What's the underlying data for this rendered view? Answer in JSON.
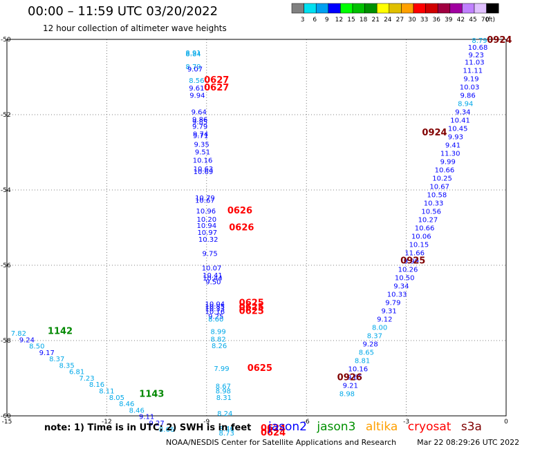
{
  "header": {
    "title": "00:00 – 11:59 UTC 03/20/2022",
    "subtitle": "12 hour collection of altimeter wave heights"
  },
  "legend": {
    "unit": "(ft)",
    "entries": [
      {
        "label": "3",
        "color": "#808080"
      },
      {
        "label": "6",
        "color": "#00e0f0"
      },
      {
        "label": "9",
        "color": "#00a0f0"
      },
      {
        "label": "12",
        "color": "#0000ff"
      },
      {
        "label": "15",
        "color": "#00ff00"
      },
      {
        "label": "18",
        "color": "#00c000"
      },
      {
        "label": "21",
        "color": "#009000"
      },
      {
        "label": "24",
        "color": "#ffff00"
      },
      {
        "label": "27",
        "color": "#e0c000"
      },
      {
        "label": "30",
        "color": "#ffa000"
      },
      {
        "label": "33",
        "color": "#ff0000"
      },
      {
        "label": "36",
        "color": "#d00000"
      },
      {
        "label": "39",
        "color": "#a00040"
      },
      {
        "label": "42",
        "color": "#a000a0"
      },
      {
        "label": "45",
        "color": "#c080ff"
      },
      {
        "label": "70",
        "color": "#e0c0ff"
      },
      {
        "label": "",
        "color": "#000000"
      }
    ]
  },
  "footer": {
    "note": "note: 1) Time is in UTC; 2) SWH is in feet",
    "credit": "NOAA/NESDIS Center for Satellite Applications and Research",
    "timestamp": "Mar 22 08:29:26 UTC 2022",
    "satellites": [
      {
        "name": "jason2",
        "color": "#0000ff"
      },
      {
        "name": "jason3",
        "color": "#009000"
      },
      {
        "name": "altika",
        "color": "#ffa000"
      },
      {
        "name": "cryosat",
        "color": "#ff0000"
      },
      {
        "name": "s3a",
        "color": "#800000"
      }
    ]
  },
  "chart_data": {
    "type": "scatter",
    "xlim": [
      -15,
      0
    ],
    "ylim": [
      -60,
      -50
    ],
    "x_ticks": [
      -15,
      -12,
      -9,
      -6,
      -3,
      0
    ],
    "y_ticks": [
      -50,
      -52,
      -54,
      -56,
      -58,
      -60
    ],
    "grid": true,
    "colors": {
      "cyan": "#00a8e8",
      "blue": "#0000ff",
      "red": "#ff0000",
      "green": "#008800",
      "maroon": "#800000"
    },
    "series": [
      {
        "name": "track 1 (wave heights)",
        "points": [
          {
            "x": -9.4,
            "y": -50.35,
            "label": "8.91",
            "c": "cyan"
          },
          {
            "x": -9.4,
            "y": -50.38,
            "label": "8.84",
            "c": "cyan"
          },
          {
            "x": -9.4,
            "y": -50.72,
            "label": "8.79",
            "c": "cyan"
          },
          {
            "x": -9.35,
            "y": -50.78,
            "label": "9.07",
            "c": "blue"
          },
          {
            "x": -9.3,
            "y": -51.08,
            "label": "8.56",
            "c": "cyan"
          },
          {
            "x": -9.3,
            "y": -51.28,
            "label": "9.61",
            "c": "blue"
          },
          {
            "x": -9.28,
            "y": -51.48,
            "label": "9.94",
            "c": "blue"
          },
          {
            "x": -9.23,
            "y": -51.92,
            "label": "9.64",
            "c": "blue"
          },
          {
            "x": -9.2,
            "y": -52.12,
            "label": "9.86",
            "c": "blue"
          },
          {
            "x": -9.2,
            "y": -52.18,
            "label": "9.85",
            "c": "blue"
          },
          {
            "x": -9.2,
            "y": -52.3,
            "label": "9.79",
            "c": "blue"
          },
          {
            "x": -9.18,
            "y": -52.5,
            "label": "9.74",
            "c": "blue"
          },
          {
            "x": -9.18,
            "y": -52.55,
            "label": "9.71",
            "c": "blue"
          },
          {
            "x": -9.15,
            "y": -52.78,
            "label": "9.35",
            "c": "blue"
          },
          {
            "x": -9.12,
            "y": -52.98,
            "label": "9.51",
            "c": "blue"
          },
          {
            "x": -9.12,
            "y": -53.2,
            "label": "10.16",
            "c": "blue"
          },
          {
            "x": -9.1,
            "y": -53.43,
            "label": "10.63",
            "c": "blue"
          },
          {
            "x": -9.1,
            "y": -53.5,
            "label": "10.69",
            "c": "blue"
          },
          {
            "x": -9.05,
            "y": -54.2,
            "label": "10.79",
            "c": "blue"
          },
          {
            "x": -9.05,
            "y": -54.27,
            "label": "10.67",
            "c": "blue"
          },
          {
            "x": -9.02,
            "y": -54.55,
            "label": "10.96",
            "c": "blue"
          },
          {
            "x": -9.0,
            "y": -54.77,
            "label": "10.20",
            "c": "blue"
          },
          {
            "x": -9.0,
            "y": -54.94,
            "label": "10.94",
            "c": "blue"
          },
          {
            "x": -8.98,
            "y": -55.12,
            "label": "10.97",
            "c": "blue"
          },
          {
            "x": -8.95,
            "y": -55.3,
            "label": "10.32",
            "c": "blue"
          },
          {
            "x": -8.9,
            "y": -55.68,
            "label": "9.75",
            "c": "blue"
          },
          {
            "x": -8.85,
            "y": -56.06,
            "label": "10.07",
            "c": "blue"
          },
          {
            "x": -8.82,
            "y": -56.26,
            "label": "10.41",
            "c": "blue"
          },
          {
            "x": -8.82,
            "y": -56.33,
            "label": "10.44",
            "c": "blue"
          },
          {
            "x": -8.8,
            "y": -56.43,
            "label": "9.50",
            "c": "blue"
          },
          {
            "x": -8.75,
            "y": -57.02,
            "label": "10.04",
            "c": "blue"
          },
          {
            "x": -8.75,
            "y": -57.08,
            "label": "10.85",
            "c": "blue"
          },
          {
            "x": -8.75,
            "y": -57.15,
            "label": "10.33",
            "c": "blue"
          },
          {
            "x": -8.75,
            "y": -57.22,
            "label": "10.16",
            "c": "blue"
          },
          {
            "x": -8.72,
            "y": -57.35,
            "label": "9.25",
            "c": "blue"
          },
          {
            "x": -8.72,
            "y": -57.42,
            "label": "8.60",
            "c": "cyan"
          },
          {
            "x": -8.65,
            "y": -57.75,
            "label": "8.99",
            "c": "cyan"
          },
          {
            "x": -8.65,
            "y": -57.95,
            "label": "8.82",
            "c": "cyan"
          },
          {
            "x": -8.62,
            "y": -58.13,
            "label": "8.26",
            "c": "cyan"
          },
          {
            "x": -8.55,
            "y": -58.73,
            "label": "7.99",
            "c": "cyan"
          },
          {
            "x": -8.5,
            "y": -59.2,
            "label": "8.67",
            "c": "cyan"
          },
          {
            "x": -8.5,
            "y": -59.33,
            "label": "8.98",
            "c": "cyan"
          },
          {
            "x": -8.48,
            "y": -59.5,
            "label": "8.31",
            "c": "cyan"
          },
          {
            "x": -8.45,
            "y": -59.93,
            "label": "8.24",
            "c": "cyan"
          },
          {
            "x": -8.4,
            "y": -60.33,
            "label": "8.46",
            "c": "cyan"
          },
          {
            "x": -8.4,
            "y": -60.45,
            "label": "8.73",
            "c": "cyan"
          }
        ]
      },
      {
        "name": "track 2 (wave heights)",
        "points": [
          {
            "x": -0.8,
            "y": -50.02,
            "label": "8.79",
            "c": "cyan"
          },
          {
            "x": -0.85,
            "y": -50.2,
            "label": "10.68",
            "c": "blue"
          },
          {
            "x": -0.9,
            "y": -50.4,
            "label": "9.23",
            "c": "blue"
          },
          {
            "x": -0.95,
            "y": -50.6,
            "label": "11.03",
            "c": "blue"
          },
          {
            "x": -1.0,
            "y": -50.82,
            "label": "11.11",
            "c": "blue"
          },
          {
            "x": -1.05,
            "y": -51.04,
            "label": "9.19",
            "c": "blue"
          },
          {
            "x": -1.1,
            "y": -51.26,
            "label": "10.03",
            "c": "blue"
          },
          {
            "x": -1.15,
            "y": -51.48,
            "label": "9.86",
            "c": "blue"
          },
          {
            "x": -1.22,
            "y": -51.7,
            "label": "8.94",
            "c": "cyan"
          },
          {
            "x": -1.3,
            "y": -51.92,
            "label": "9.34",
            "c": "blue"
          },
          {
            "x": -1.38,
            "y": -52.14,
            "label": "10.41",
            "c": "blue"
          },
          {
            "x": -1.45,
            "y": -52.36,
            "label": "10.45",
            "c": "blue"
          },
          {
            "x": -1.52,
            "y": -52.58,
            "label": "9.93",
            "c": "blue"
          },
          {
            "x": -1.6,
            "y": -52.8,
            "label": "9.41",
            "c": "blue"
          },
          {
            "x": -1.68,
            "y": -53.02,
            "label": "11.30",
            "c": "blue"
          },
          {
            "x": -1.75,
            "y": -53.24,
            "label": "9.99",
            "c": "blue"
          },
          {
            "x": -1.85,
            "y": -53.46,
            "label": "10.66",
            "c": "blue"
          },
          {
            "x": -1.92,
            "y": -53.68,
            "label": "10.25",
            "c": "blue"
          },
          {
            "x": -2.0,
            "y": -53.9,
            "label": "10.67",
            "c": "blue"
          },
          {
            "x": -2.08,
            "y": -54.12,
            "label": "10.58",
            "c": "blue"
          },
          {
            "x": -2.18,
            "y": -54.34,
            "label": "10.33",
            "c": "blue"
          },
          {
            "x": -2.25,
            "y": -54.56,
            "label": "10.56",
            "c": "blue"
          },
          {
            "x": -2.35,
            "y": -54.78,
            "label": "10.27",
            "c": "blue"
          },
          {
            "x": -2.45,
            "y": -55.0,
            "label": "10.66",
            "c": "blue"
          },
          {
            "x": -2.55,
            "y": -55.22,
            "label": "10.06",
            "c": "blue"
          },
          {
            "x": -2.62,
            "y": -55.44,
            "label": "10.15",
            "c": "blue"
          },
          {
            "x": -2.75,
            "y": -55.66,
            "label": "11.66",
            "c": "blue"
          },
          {
            "x": -2.85,
            "y": -55.88,
            "label": "9.99",
            "c": "blue"
          },
          {
            "x": -2.95,
            "y": -56.1,
            "label": "10.26",
            "c": "blue"
          },
          {
            "x": -3.05,
            "y": -56.32,
            "label": "10.50",
            "c": "blue"
          },
          {
            "x": -3.15,
            "y": -56.54,
            "label": "9.34",
            "c": "blue"
          },
          {
            "x": -3.28,
            "y": -56.76,
            "label": "10.33",
            "c": "blue"
          },
          {
            "x": -3.4,
            "y": -56.98,
            "label": "9.79",
            "c": "blue"
          },
          {
            "x": -3.52,
            "y": -57.2,
            "label": "9.31",
            "c": "blue"
          },
          {
            "x": -3.65,
            "y": -57.42,
            "label": "9.12",
            "c": "blue"
          },
          {
            "x": -3.8,
            "y": -57.64,
            "label": "8.00",
            "c": "cyan"
          },
          {
            "x": -3.95,
            "y": -57.86,
            "label": "8.37",
            "c": "cyan"
          },
          {
            "x": -4.08,
            "y": -58.08,
            "label": "9.28",
            "c": "blue"
          },
          {
            "x": -4.2,
            "y": -58.3,
            "label": "8.65",
            "c": "cyan"
          },
          {
            "x": -4.32,
            "y": -58.52,
            "label": "8.81",
            "c": "cyan"
          },
          {
            "x": -4.45,
            "y": -58.74,
            "label": "10.16",
            "c": "blue"
          },
          {
            "x": -4.55,
            "y": -58.96,
            "label": "9.65",
            "c": "blue"
          },
          {
            "x": -4.68,
            "y": -59.18,
            "label": "9.21",
            "c": "blue"
          },
          {
            "x": -4.78,
            "y": -59.4,
            "label": "8.98",
            "c": "cyan"
          }
        ]
      },
      {
        "name": "track 3 (wave heights)",
        "points": [
          {
            "x": -14.65,
            "y": -57.8,
            "label": "7.82",
            "c": "cyan"
          },
          {
            "x": -14.4,
            "y": -57.97,
            "label": "9.24",
            "c": "blue"
          },
          {
            "x": -14.1,
            "y": -58.14,
            "label": "8.50",
            "c": "cyan"
          },
          {
            "x": -13.8,
            "y": -58.31,
            "label": "9.17",
            "c": "blue"
          },
          {
            "x": -13.5,
            "y": -58.48,
            "label": "8.37",
            "c": "cyan"
          },
          {
            "x": -13.2,
            "y": -58.65,
            "label": "8.35",
            "c": "cyan"
          },
          {
            "x": -12.9,
            "y": -58.82,
            "label": "6.81",
            "c": "cyan"
          },
          {
            "x": -12.6,
            "y": -58.99,
            "label": "7.23",
            "c": "cyan"
          },
          {
            "x": -12.3,
            "y": -59.16,
            "label": "8.16",
            "c": "cyan"
          },
          {
            "x": -12.0,
            "y": -59.33,
            "label": "8.11",
            "c": "cyan"
          },
          {
            "x": -11.7,
            "y": -59.5,
            "label": "8.05",
            "c": "cyan"
          },
          {
            "x": -11.4,
            "y": -59.67,
            "label": "8.46",
            "c": "cyan"
          },
          {
            "x": -11.1,
            "y": -59.84,
            "label": "8.46",
            "c": "cyan"
          },
          {
            "x": -10.8,
            "y": -60.01,
            "label": "9.11",
            "c": "blue"
          },
          {
            "x": -10.5,
            "y": -60.18,
            "label": "9.27",
            "c": "blue"
          },
          {
            "x": -10.2,
            "y": -60.35,
            "label": "8.66",
            "c": "cyan"
          }
        ]
      },
      {
        "name": "time labels",
        "points": [
          {
            "x": -8.7,
            "y": -51.08,
            "label": "0627",
            "c": "red"
          },
          {
            "x": -8.7,
            "y": -51.28,
            "label": "0627",
            "c": "red"
          },
          {
            "x": -8.0,
            "y": -54.55,
            "label": "0626",
            "c": "red"
          },
          {
            "x": -7.95,
            "y": -55.0,
            "label": "0626",
            "c": "red"
          },
          {
            "x": -7.65,
            "y": -57.0,
            "label": "0625",
            "c": "red"
          },
          {
            "x": -7.65,
            "y": -57.12,
            "label": "0625",
            "c": "red"
          },
          {
            "x": -7.65,
            "y": -57.22,
            "label": "0625",
            "c": "red"
          },
          {
            "x": -7.4,
            "y": -58.73,
            "label": "0625",
            "c": "red"
          },
          {
            "x": -7.0,
            "y": -60.33,
            "label": "0624",
            "c": "red"
          },
          {
            "x": -7.0,
            "y": -60.45,
            "label": "0624",
            "c": "red"
          },
          {
            "x": -13.4,
            "y": -57.75,
            "label": "1142",
            "c": "green"
          },
          {
            "x": -10.65,
            "y": -59.42,
            "label": "1143",
            "c": "green"
          },
          {
            "x": -2.15,
            "y": -52.48,
            "label": "0924",
            "c": "maroon"
          },
          {
            "x": -2.8,
            "y": -55.88,
            "label": "0925",
            "c": "maroon"
          },
          {
            "x": -4.7,
            "y": -58.98,
            "label": "0926",
            "c": "maroon"
          },
          {
            "x": -0.2,
            "y": -50.02,
            "label": "0924",
            "c": "maroon"
          }
        ]
      }
    ]
  }
}
